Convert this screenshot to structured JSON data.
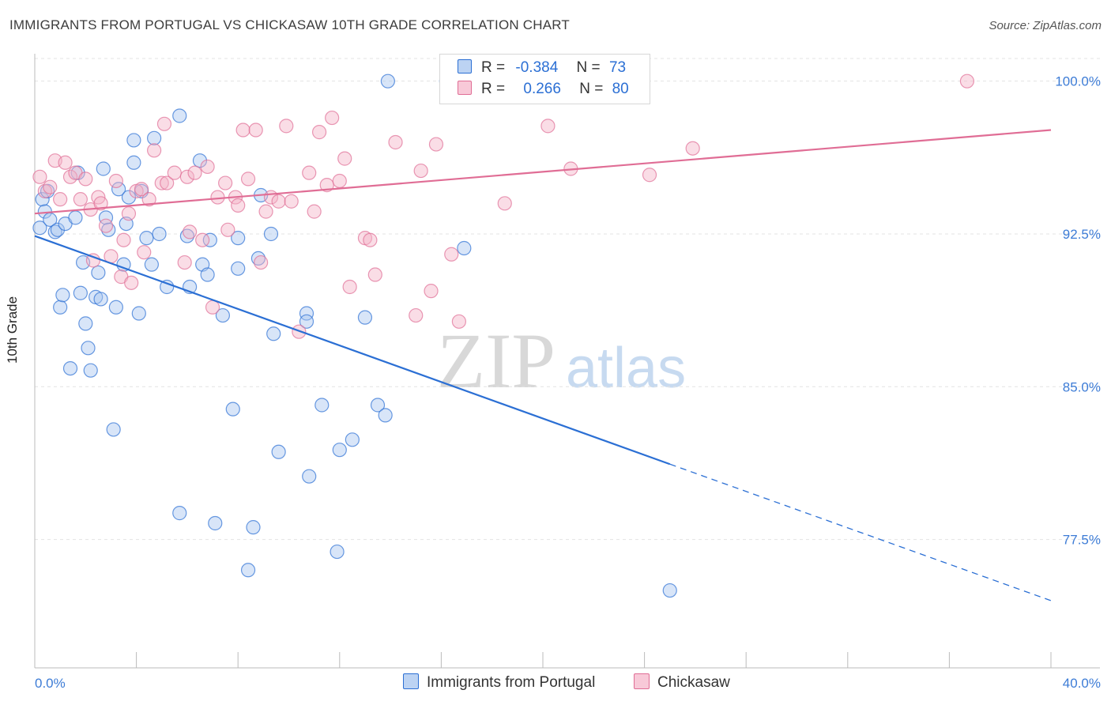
{
  "title": "IMMIGRANTS FROM PORTUGAL VS CHICKASAW 10TH GRADE CORRELATION CHART",
  "source": "Source: ZipAtlas.com",
  "watermark": {
    "zip": "ZIP",
    "atlas": "atlas"
  },
  "colors": {
    "blue": "#2b6fd4",
    "blue_fill": "#a9c6f0",
    "pink": "#e06d95",
    "pink_fill": "#f5b3c8",
    "grid": "#e3e3e3",
    "axis_text": "#3d7cd6"
  },
  "legend": {
    "rows": [
      {
        "r_label": "R =",
        "r_value": "-0.384",
        "n_label": "N =",
        "n_value": "73"
      },
      {
        "r_label": "R =",
        "r_value": "0.266",
        "n_label": "N =",
        "n_value": "80"
      }
    ]
  },
  "chart_data": {
    "type": "scatter",
    "title": "IMMIGRANTS FROM PORTUGAL VS CHICKASAW 10TH GRADE CORRELATION CHART",
    "xlabel": "",
    "ylabel": "10th Grade",
    "xlim": [
      0.0,
      40.0
    ],
    "ylim": [
      71.2,
      101.5
    ],
    "x_tick_labels": [
      "0.0%",
      "40.0%"
    ],
    "y_ticks": [
      77.5,
      85.0,
      92.5,
      100.0
    ],
    "y_tick_labels": [
      "77.5%",
      "85.0%",
      "92.5%",
      "100.0%"
    ],
    "grid": true,
    "legend_position": "top-center",
    "series": [
      {
        "name": "Immigrants from Portugal",
        "color": "#2b6fd4",
        "trend": {
          "x": [
            0.0,
            25.0
          ],
          "y": [
            92.4,
            81.2
          ],
          "dashed_extension": {
            "x": [
              25.0,
              40.0
            ],
            "y": [
              81.2,
              74.5
            ]
          }
        },
        "points": [
          [
            0.2,
            92.8
          ],
          [
            0.3,
            94.2
          ],
          [
            0.4,
            93.6
          ],
          [
            0.5,
            94.6
          ],
          [
            0.6,
            93.2
          ],
          [
            0.8,
            92.6
          ],
          [
            0.9,
            92.7
          ],
          [
            1.0,
            88.9
          ],
          [
            1.1,
            89.5
          ],
          [
            1.2,
            93.0
          ],
          [
            1.4,
            85.9
          ],
          [
            1.6,
            93.3
          ],
          [
            1.7,
            95.5
          ],
          [
            1.8,
            89.6
          ],
          [
            1.9,
            91.1
          ],
          [
            2.0,
            88.1
          ],
          [
            2.1,
            86.9
          ],
          [
            2.2,
            85.8
          ],
          [
            2.4,
            89.4
          ],
          [
            2.5,
            90.6
          ],
          [
            2.6,
            89.3
          ],
          [
            2.7,
            95.7
          ],
          [
            2.8,
            93.3
          ],
          [
            2.9,
            92.7
          ],
          [
            3.1,
            82.9
          ],
          [
            3.2,
            88.9
          ],
          [
            3.3,
            94.7
          ],
          [
            3.5,
            91.0
          ],
          [
            3.6,
            93.0
          ],
          [
            3.7,
            94.3
          ],
          [
            3.9,
            96.0
          ],
          [
            3.9,
            97.1
          ],
          [
            4.1,
            88.6
          ],
          [
            4.2,
            94.6
          ],
          [
            4.4,
            92.3
          ],
          [
            4.6,
            91.0
          ],
          [
            4.7,
            97.2
          ],
          [
            4.9,
            92.5
          ],
          [
            5.2,
            89.9
          ],
          [
            5.7,
            98.3
          ],
          [
            5.7,
            78.8
          ],
          [
            6.0,
            92.4
          ],
          [
            6.1,
            89.9
          ],
          [
            6.5,
            96.1
          ],
          [
            6.6,
            91.0
          ],
          [
            6.8,
            90.5
          ],
          [
            6.9,
            92.2
          ],
          [
            7.1,
            78.3
          ],
          [
            7.4,
            88.5
          ],
          [
            7.8,
            83.9
          ],
          [
            8.0,
            92.3
          ],
          [
            8.0,
            90.8
          ],
          [
            8.4,
            76.0
          ],
          [
            8.6,
            78.1
          ],
          [
            8.8,
            91.3
          ],
          [
            8.9,
            94.4
          ],
          [
            9.3,
            92.5
          ],
          [
            9.4,
            87.6
          ],
          [
            9.6,
            81.8
          ],
          [
            10.7,
            88.6
          ],
          [
            10.7,
            88.2
          ],
          [
            10.8,
            80.6
          ],
          [
            11.3,
            84.1
          ],
          [
            11.9,
            76.9
          ],
          [
            12.0,
            81.9
          ],
          [
            12.5,
            82.4
          ],
          [
            13.0,
            88.4
          ],
          [
            13.5,
            84.1
          ],
          [
            13.8,
            83.6
          ],
          [
            13.9,
            100.0
          ],
          [
            16.2,
            100.0
          ],
          [
            16.9,
            91.8
          ],
          [
            25.0,
            75.0
          ]
        ]
      },
      {
        "name": "Chickasaw",
        "color": "#e06d95",
        "trend": {
          "x": [
            0.0,
            40.0
          ],
          "y": [
            93.5,
            97.6
          ]
        },
        "points": [
          [
            0.2,
            95.3
          ],
          [
            0.4,
            94.6
          ],
          [
            0.6,
            94.8
          ],
          [
            0.8,
            96.1
          ],
          [
            1.0,
            94.2
          ],
          [
            1.2,
            96.0
          ],
          [
            1.4,
            95.3
          ],
          [
            1.6,
            95.5
          ],
          [
            1.8,
            94.2
          ],
          [
            2.0,
            95.2
          ],
          [
            2.2,
            93.7
          ],
          [
            2.3,
            91.2
          ],
          [
            2.5,
            94.3
          ],
          [
            2.6,
            94.0
          ],
          [
            2.8,
            92.9
          ],
          [
            3.0,
            91.4
          ],
          [
            3.2,
            95.1
          ],
          [
            3.4,
            90.4
          ],
          [
            3.5,
            92.2
          ],
          [
            3.7,
            93.5
          ],
          [
            3.8,
            90.1
          ],
          [
            4.0,
            94.6
          ],
          [
            4.2,
            94.7
          ],
          [
            4.3,
            91.6
          ],
          [
            4.5,
            94.2
          ],
          [
            4.7,
            96.6
          ],
          [
            5.0,
            95.0
          ],
          [
            5.1,
            97.9
          ],
          [
            5.2,
            95.0
          ],
          [
            5.5,
            95.5
          ],
          [
            5.9,
            91.1
          ],
          [
            6.0,
            95.3
          ],
          [
            6.1,
            92.6
          ],
          [
            6.3,
            95.5
          ],
          [
            6.6,
            92.2
          ],
          [
            6.8,
            95.8
          ],
          [
            7.0,
            88.9
          ],
          [
            7.2,
            94.3
          ],
          [
            7.5,
            95.0
          ],
          [
            7.6,
            92.7
          ],
          [
            7.9,
            94.3
          ],
          [
            8.0,
            93.9
          ],
          [
            8.2,
            97.6
          ],
          [
            8.4,
            95.2
          ],
          [
            8.7,
            97.6
          ],
          [
            8.9,
            91.1
          ],
          [
            9.1,
            93.6
          ],
          [
            9.3,
            94.3
          ],
          [
            9.6,
            94.1
          ],
          [
            9.9,
            97.8
          ],
          [
            10.1,
            94.1
          ],
          [
            10.4,
            87.7
          ],
          [
            10.8,
            95.5
          ],
          [
            11.0,
            93.6
          ],
          [
            11.2,
            97.5
          ],
          [
            11.5,
            94.9
          ],
          [
            11.7,
            98.2
          ],
          [
            12.0,
            95.1
          ],
          [
            12.2,
            96.2
          ],
          [
            12.4,
            89.9
          ],
          [
            13.0,
            92.3
          ],
          [
            13.2,
            92.2
          ],
          [
            13.4,
            90.5
          ],
          [
            14.2,
            97.0
          ],
          [
            15.0,
            88.5
          ],
          [
            15.2,
            95.6
          ],
          [
            15.6,
            89.7
          ],
          [
            15.8,
            96.9
          ],
          [
            16.4,
            91.5
          ],
          [
            16.7,
            88.2
          ],
          [
            17.0,
            100.0
          ],
          [
            18.5,
            94.0
          ],
          [
            19.0,
            100.0
          ],
          [
            20.2,
            97.8
          ],
          [
            21.1,
            95.7
          ],
          [
            22.1,
            100.0
          ],
          [
            23.0,
            100.0
          ],
          [
            24.2,
            95.4
          ],
          [
            25.9,
            96.7
          ],
          [
            36.7,
            100.0
          ]
        ]
      }
    ]
  },
  "bottom_legend": {
    "items": [
      "Immigrants from Portugal",
      "Chickasaw"
    ]
  }
}
